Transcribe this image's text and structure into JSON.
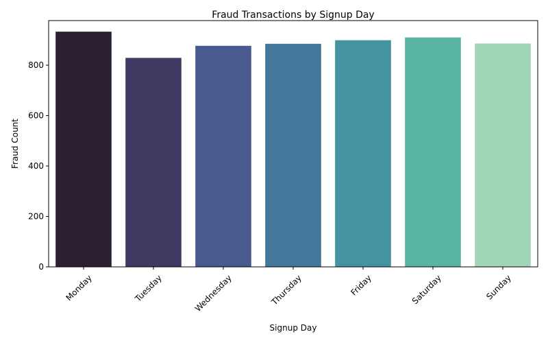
{
  "chart_data": {
    "type": "bar",
    "title": "Fraud Transactions by Signup Day",
    "xlabel": "Signup Day",
    "ylabel": "Fraud Count",
    "categories": [
      "Monday",
      "Tuesday",
      "Wednesday",
      "Thursday",
      "Friday",
      "Saturday",
      "Sunday"
    ],
    "values": [
      933,
      829,
      877,
      885,
      899,
      910,
      886
    ],
    "colors": [
      "#2b1f31",
      "#413a62",
      "#485a8e",
      "#43789a",
      "#4493a0",
      "#5ab4a3",
      "#a0d5b6"
    ],
    "ylim": [
      0,
      977
    ],
    "yticks": [
      0,
      200,
      400,
      600,
      800
    ],
    "grid": false,
    "legend": "none"
  }
}
